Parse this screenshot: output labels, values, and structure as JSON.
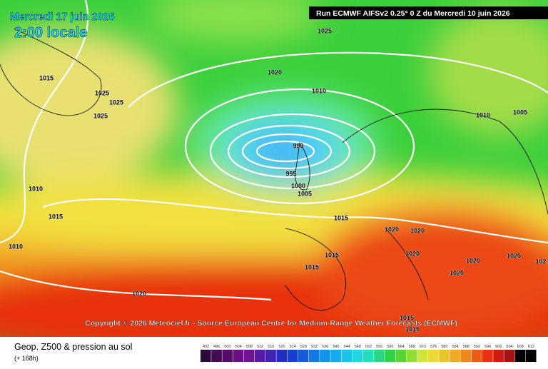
{
  "header": {
    "date": "Mercredi 17 juin 2026",
    "time": "2:00 locale",
    "run": "Run ECMWF AIFSv2 0.25° 0 Z du Mercredi 10 juin 2026"
  },
  "isobar_labels": [
    "1025",
    "1015",
    "1020",
    "1025",
    "1025",
    "1025",
    "1010",
    "1010",
    "1005",
    "990",
    "995",
    "1000",
    "1005",
    "1010",
    "1015",
    "1010",
    "1015",
    "1020",
    "1020",
    "1015",
    "1015",
    "1020",
    "1020",
    "1020",
    "102",
    "1020",
    "1020",
    "1015",
    "1015"
  ],
  "copyright": "Copyright © 2026 Meteociel.fr - Source European Centre for Medium-Range Weather Forecasts (ECMWF)",
  "legend": {
    "title": "Geop. Z500 & pression au sol",
    "lead": "(+ 168h)",
    "scale": [
      "492",
      "496",
      "500",
      "504",
      "508",
      "512",
      "516",
      "520",
      "524",
      "528",
      "532",
      "536",
      "540",
      "544",
      "548",
      "552",
      "556",
      "560",
      "564",
      "568",
      "572",
      "576",
      "580",
      "584",
      "588",
      "592",
      "596",
      "600",
      "604",
      "608",
      "612"
    ]
  }
}
